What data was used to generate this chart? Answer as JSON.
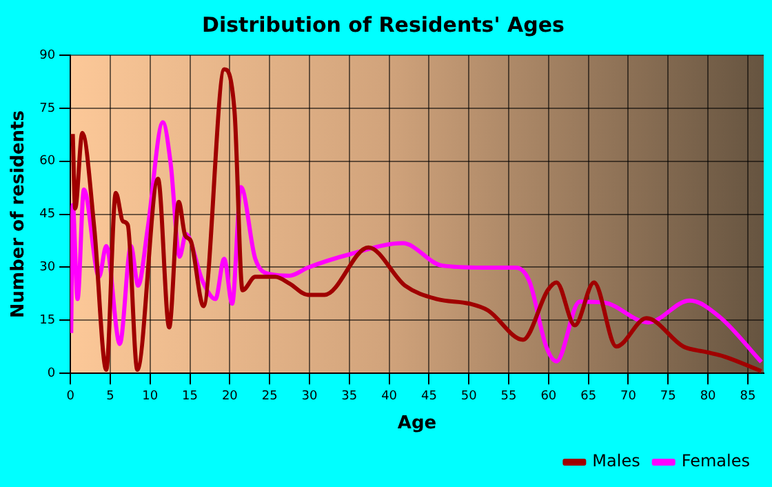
{
  "chart_data": {
    "type": "line",
    "title": "Distribution of Residents' Ages",
    "xlabel": "Age",
    "ylabel": "Number of residents",
    "xlim": [
      0,
      87
    ],
    "xticks": [
      0,
      5,
      10,
      15,
      20,
      25,
      30,
      35,
      40,
      45,
      50,
      55,
      60,
      65,
      70,
      75,
      80,
      85
    ],
    "ylim": [
      0,
      90
    ],
    "yticks": [
      0,
      15,
      30,
      45,
      60,
      75,
      90
    ],
    "grid": true,
    "legend": "bottom right",
    "marker": "none",
    "line_style": "solid",
    "series": [
      {
        "name": "Males",
        "color": "#a00000",
        "x": [
          0.3,
          0.6,
          1.5,
          3,
          4.5,
          5.7,
          6.6,
          7.2,
          8.4,
          11,
          12.4,
          13.6,
          14.4,
          15.1,
          16.7,
          19.3,
          20.6,
          21.6,
          23.2,
          25.7,
          27.5,
          29.8,
          31.9,
          37.4,
          42,
          46,
          50.1,
          52.4,
          56.8,
          59.9,
          61,
          63.3,
          65.7,
          68.5,
          72.3,
          76.9,
          79.8,
          82.1,
          86.7
        ],
        "values": [
          67.7,
          46.6,
          68,
          41,
          1,
          51,
          43,
          42,
          1,
          55,
          13,
          48.5,
          39,
          37.5,
          19,
          86,
          74,
          23.5,
          27.3,
          27.3,
          25.4,
          22.2,
          22.2,
          35.6,
          24.8,
          21,
          19.7,
          17.8,
          9.5,
          23.5,
          25.7,
          13.6,
          25.7,
          7.6,
          15.6,
          7.6,
          6,
          4.7,
          0.6
        ]
      },
      {
        "name": "Females",
        "color": "#ff00ff",
        "x": [
          0.1,
          0.3,
          0.9,
          1.7,
          3.6,
          4.5,
          6.2,
          7.6,
          8.5,
          9.7,
          11.6,
          12.6,
          13.7,
          14.5,
          16.6,
          18.2,
          19.3,
          20.3,
          21.4,
          23.2,
          25.2,
          27.5,
          29.8,
          35.1,
          41.7,
          46.6,
          51.8,
          55.9,
          57.6,
          59.7,
          61,
          63.9,
          67,
          72.5,
          77.7,
          81.5,
          86.7
        ],
        "values": [
          11.4,
          47.6,
          21,
          52,
          27.3,
          36,
          8.3,
          36,
          24.8,
          41,
          71,
          59,
          33,
          39.4,
          26,
          21,
          32.4,
          19.7,
          52.7,
          32.4,
          28,
          27.6,
          29.9,
          33.7,
          36.8,
          30.5,
          29.9,
          29.9,
          26,
          7.6,
          3.4,
          20.3,
          20,
          14.4,
          20.6,
          15.9,
          3.2
        ]
      }
    ]
  }
}
